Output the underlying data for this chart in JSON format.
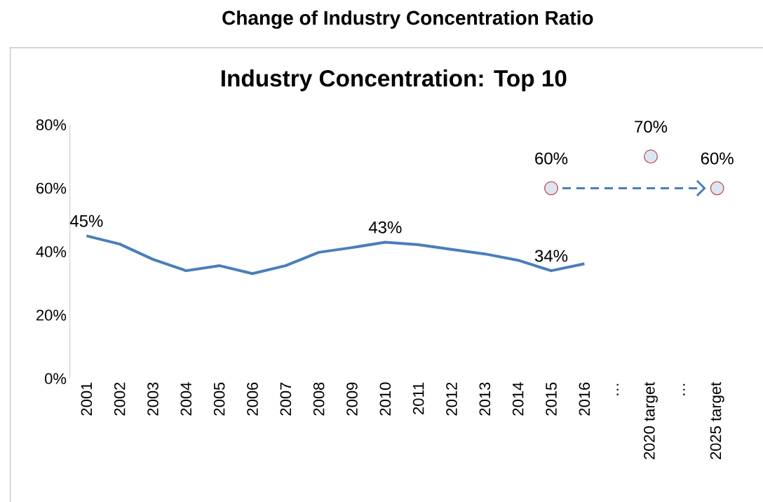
{
  "chart_data": {
    "type": "line",
    "title": "Change of Industry Concentration Ratio",
    "subtitle": "Industry Concentration: Top 10",
    "categories": [
      "2001",
      "2002",
      "2003",
      "2004",
      "2005",
      "2006",
      "2007",
      "2008",
      "2009",
      "2010",
      "2011",
      "2012",
      "2013",
      "2014",
      "2015",
      "2016",
      "…",
      "2020 target",
      "…",
      "2025 target"
    ],
    "series": [
      {
        "color": "#4a7ebb",
        "values": [
          45,
          42.4,
          37.6,
          34,
          35.6,
          33.1,
          35.6,
          39.8,
          41.3,
          43,
          42.2,
          40.7,
          39.3,
          37.3,
          34,
          36.2,
          null,
          null,
          null,
          null
        ],
        "value_labels": [
          "45%",
          null,
          null,
          null,
          null,
          null,
          null,
          null,
          null,
          "43%",
          null,
          null,
          null,
          null,
          "34%",
          null,
          null,
          null,
          null,
          null
        ]
      },
      {
        "type": "scatter",
        "marker": "circle",
        "color": "#c0504d",
        "values": [
          null,
          null,
          null,
          null,
          null,
          null,
          null,
          null,
          null,
          null,
          null,
          null,
          null,
          null,
          60,
          null,
          null,
          70,
          null,
          60
        ],
        "value_labels": [
          null,
          null,
          null,
          null,
          null,
          null,
          null,
          null,
          null,
          null,
          null,
          null,
          null,
          null,
          "60%",
          null,
          null,
          "70%",
          null,
          "60%"
        ]
      }
    ],
    "ylim": [
      0,
      80
    ],
    "yticks": [
      {
        "value": 0,
        "label": "0%"
      },
      {
        "value": 20,
        "label": "20%"
      },
      {
        "value": 40,
        "label": "40%"
      },
      {
        "value": 60,
        "label": "60%"
      },
      {
        "value": 80,
        "label": "80%"
      }
    ]
  }
}
